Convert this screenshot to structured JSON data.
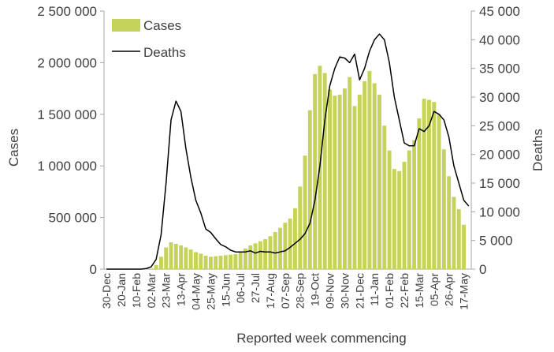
{
  "chart_data": {
    "type": "bar",
    "title": "",
    "xlabel": "Reported week commencing",
    "ylabel": "Cases",
    "y2label": "Deaths",
    "ylim": [
      0,
      2500000
    ],
    "y2lim": [
      0,
      45000
    ],
    "yticks": [
      "0",
      "500 000",
      "1 000 000",
      "1 500 000",
      "2 000 000",
      "2 500 000"
    ],
    "y2ticks": [
      "0",
      "5 000",
      "10 000",
      "15 000",
      "20 000",
      "25 000",
      "30 000",
      "35 000",
      "40 000",
      "45 000"
    ],
    "grid": false,
    "legend_position": "top-left",
    "categories": [
      "30-Dec",
      "06-Jan",
      "13-Jan",
      "20-Jan",
      "27-Jan",
      "03-Feb",
      "10-Feb",
      "17-Feb",
      "24-Feb",
      "02-Mar",
      "09-Mar",
      "16-Mar",
      "23-Mar",
      "30-Mar",
      "06-Apr",
      "13-Apr",
      "20-Apr",
      "27-Apr",
      "04-May",
      "11-May",
      "18-May",
      "25-May",
      "01-Jun",
      "08-Jun",
      "15-Jun",
      "22-Jun",
      "29-Jun",
      "06-Jul",
      "13-Jul",
      "20-Jul",
      "27-Jul",
      "03-Aug",
      "10-Aug",
      "17-Aug",
      "24-Aug",
      "31-Aug",
      "07-Sep",
      "14-Sep",
      "21-Sep",
      "28-Sep",
      "05-Oct",
      "12-Oct",
      "19-Oct",
      "26-Oct",
      "02-Nov",
      "09-Nov",
      "16-Nov",
      "23-Nov",
      "30-Nov",
      "07-Dec",
      "14-Dec",
      "21-Dec",
      "28-Dec",
      "04-Jan",
      "11-Jan",
      "18-Jan",
      "25-Jan",
      "01-Feb",
      "08-Feb",
      "15-Feb",
      "22-Feb",
      "01-Mar",
      "08-Mar",
      "15-Mar",
      "22-Mar",
      "29-Mar",
      "05-Apr",
      "12-Apr",
      "19-Apr",
      "26-Apr",
      "03-May",
      "10-May",
      "17-May",
      "24-May"
    ],
    "x_tick_labels": [
      "30-Dec",
      "20-Jan",
      "10-Feb",
      "02-Mar",
      "23-Mar",
      "13-Apr",
      "04-May",
      "25-May",
      "15-Jun",
      "06-Jul",
      "27-Jul",
      "17-Aug",
      "07-Sep",
      "28-Sep",
      "19-Oct",
      "09-Nov",
      "30-Nov",
      "21-Dec",
      "11-Jan",
      "01-Feb",
      "22-Feb",
      "15-Mar",
      "05-Apr",
      "26-Apr",
      "17-May"
    ],
    "series": [
      {
        "name": "Cases",
        "type": "bar",
        "axis": "left",
        "color": "#c5d35b",
        "values": [
          0,
          0,
          0,
          0,
          0,
          0,
          0,
          0,
          0,
          5000,
          40000,
          120000,
          210000,
          260000,
          245000,
          230000,
          210000,
          190000,
          165000,
          150000,
          130000,
          120000,
          125000,
          130000,
          135000,
          140000,
          145000,
          170000,
          200000,
          230000,
          250000,
          270000,
          290000,
          320000,
          360000,
          400000,
          450000,
          490000,
          590000,
          800000,
          1100000,
          1540000,
          1890000,
          1970000,
          1900000,
          1740000,
          1680000,
          1690000,
          1750000,
          1860000,
          1580000,
          1690000,
          1820000,
          1920000,
          1800000,
          1690000,
          1390000,
          1150000,
          970000,
          950000,
          1040000,
          1150000,
          1250000,
          1460000,
          1650000,
          1640000,
          1620000,
          1500000,
          1160000,
          900000,
          700000,
          580000,
          430000,
          0
        ]
      },
      {
        "name": "Deaths",
        "type": "line",
        "axis": "right",
        "color": "#000000",
        "values": [
          0,
          0,
          0,
          0,
          0,
          0,
          0,
          0,
          100,
          400,
          1700,
          6000,
          15000,
          26000,
          29300,
          27500,
          21000,
          16000,
          12000,
          9800,
          7000,
          6400,
          5300,
          4300,
          3900,
          3300,
          3000,
          3000,
          3000,
          3200,
          2800,
          3100,
          3000,
          3000,
          2800,
          3000,
          3200,
          3800,
          4500,
          5200,
          6200,
          8000,
          12000,
          18000,
          26000,
          32000,
          35000,
          37000,
          36800,
          36000,
          37500,
          33000,
          35000,
          38000,
          40000,
          41000,
          40000,
          36000,
          30000,
          26000,
          22000,
          21500,
          21500,
          24500,
          24000,
          25000,
          27500,
          27000,
          26000,
          23000,
          18000,
          15000,
          12000,
          11000
        ]
      }
    ]
  }
}
